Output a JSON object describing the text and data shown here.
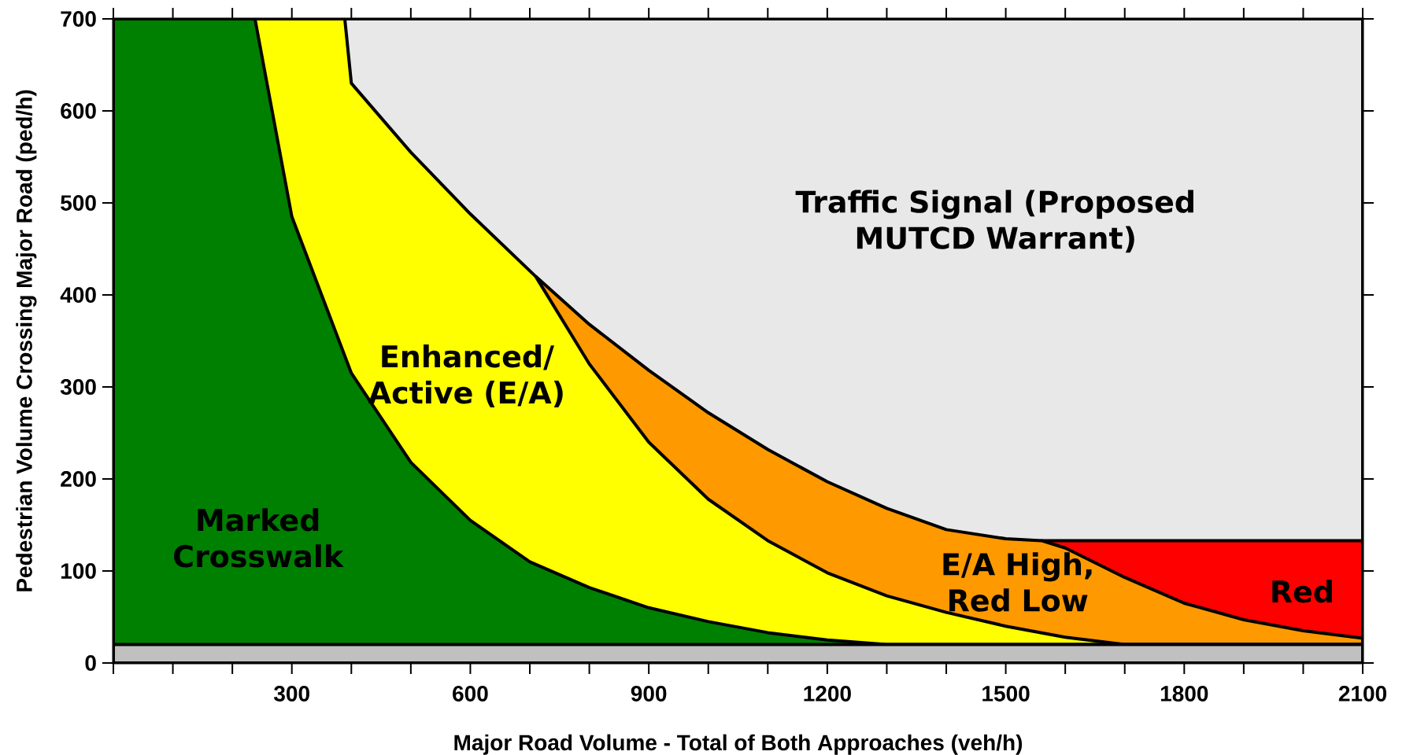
{
  "chart_data": {
    "type": "area",
    "xlabel": "Major Road Volume - Total of Both Approaches (veh/h)",
    "ylabel": "Pedestrian Volume Crossing Major Road (ped/h)",
    "xlim": [
      0,
      2100
    ],
    "ylim": [
      0,
      700
    ],
    "xticks": [
      {
        "value": 0,
        "label": null
      },
      {
        "value": 100,
        "label": null
      },
      {
        "value": 200,
        "label": null
      },
      300,
      {
        "value": 400,
        "label": null
      },
      {
        "value": 500,
        "label": null
      },
      600,
      {
        "value": 700,
        "label": null
      },
      {
        "value": 800,
        "label": null
      },
      900,
      {
        "value": 1000,
        "label": null
      },
      {
        "value": 1100,
        "label": null
      },
      1200,
      {
        "value": 1300,
        "label": null
      },
      {
        "value": 1400,
        "label": null
      },
      1500,
      {
        "value": 1600,
        "label": null
      },
      {
        "value": 1700,
        "label": null
      },
      1800,
      {
        "value": 1900,
        "label": null
      },
      {
        "value": 2000,
        "label": null
      },
      2100
    ],
    "yticks": [
      0,
      100,
      200,
      300,
      400,
      500,
      600,
      700
    ],
    "series": [
      {
        "color": "#c0c0c0",
        "x": [
          0,
          2100
        ],
        "values": [
          20,
          20
        ]
      },
      {
        "color": "#008000",
        "x": [
          0,
          238,
          300,
          400,
          500,
          600,
          700,
          800,
          900,
          1000,
          1100,
          1200,
          1300,
          2100
        ],
        "values": [
          700,
          700,
          485,
          315,
          218,
          155,
          110,
          82,
          60,
          45,
          33,
          25,
          20,
          20
        ]
      },
      {
        "color": "#ffff00",
        "x": [
          238,
          389,
          400,
          500,
          600,
          710,
          800,
          900,
          1000,
          1100,
          1200,
          1300,
          1400,
          1500,
          1600,
          1700,
          2100
        ],
        "values": [
          700,
          700,
          630,
          555,
          488,
          420,
          325,
          240,
          178,
          133,
          98,
          73,
          55,
          40,
          28,
          20,
          20
        ]
      },
      {
        "color": "#ff9900",
        "x": [
          710,
          800,
          900,
          1000,
          1100,
          1200,
          1300,
          1400,
          1500,
          1560,
          1600,
          1700,
          1800,
          1900,
          2000,
          2100
        ],
        "values": [
          420,
          368,
          318,
          272,
          232,
          197,
          168,
          145,
          135,
          133,
          125,
          93,
          65,
          47,
          35,
          27
        ]
      },
      {
        "color": "#ff0000",
        "x": [
          1560,
          2100
        ],
        "values": [
          133,
          133
        ]
      },
      {
        "color": "#e8e8e8",
        "x": [
          389,
          2100
        ],
        "values": [
          700,
          700
        ]
      }
    ],
    "annotations": [
      "Traffic Signal (Proposed MUTCD Warrant)",
      "Enhanced/ Active (E/A)",
      "Marked Crosswalk",
      "E/A High, Red Low",
      "Red"
    ]
  }
}
